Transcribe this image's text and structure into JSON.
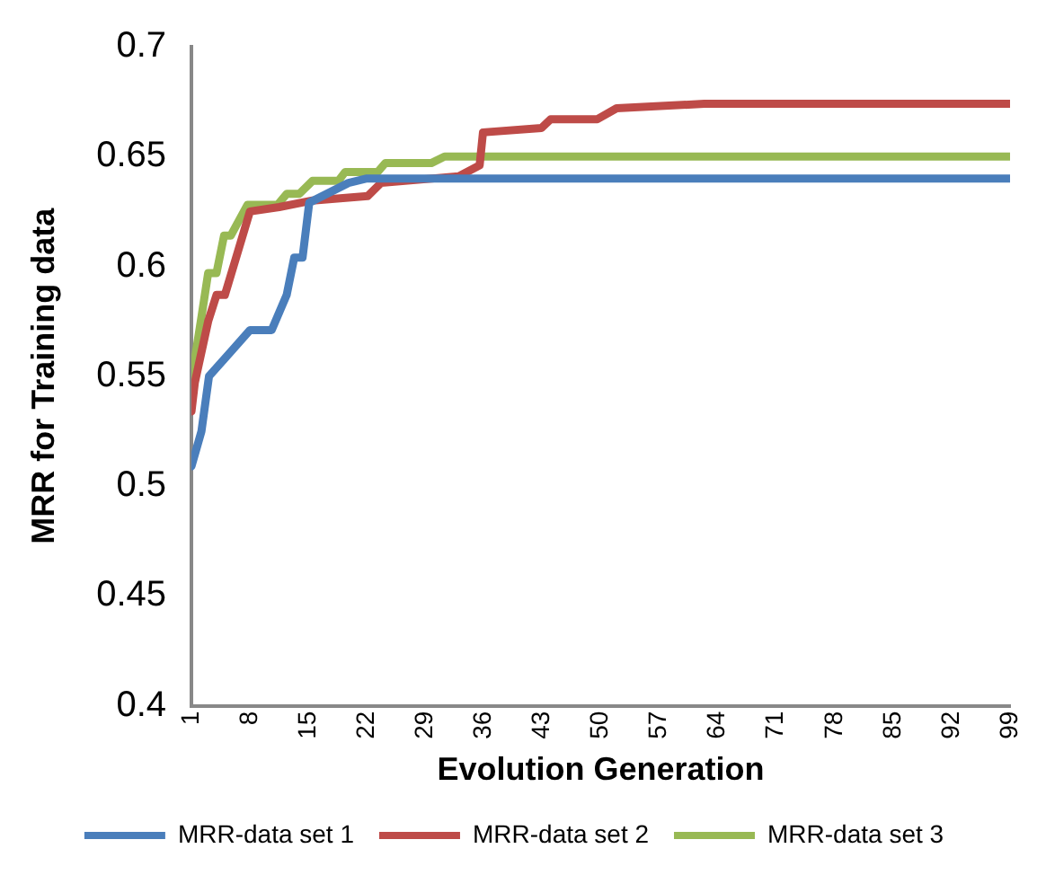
{
  "chart_data": {
    "type": "line",
    "xlabel": "Evolution Generation",
    "ylabel": "MRR for Training data",
    "xlim": [
      1,
      99
    ],
    "xticks": [
      1,
      8,
      15,
      22,
      29,
      36,
      43,
      50,
      57,
      64,
      71,
      78,
      85,
      92,
      99
    ],
    "ylim": [
      0.4,
      0.7
    ],
    "yticks": [
      0.4,
      0.45,
      0.5,
      0.55,
      0.6,
      0.65,
      0.7
    ],
    "grid": false,
    "legend": "bottom",
    "marker": "none",
    "line_style": "solid",
    "series": [
      {
        "name": "MRR-data set 1",
        "color": "#4a7ebb",
        "x": [
          1,
          2.2,
          3.1,
          8,
          10.6,
          12.4,
          13.3,
          14.3,
          15.1,
          19.8,
          22,
          99
        ],
        "values": [
          0.509,
          0.525,
          0.55,
          0.571,
          0.571,
          0.587,
          0.604,
          0.604,
          0.629,
          0.638,
          0.64,
          0.64
        ]
      },
      {
        "name": "MRR-data set 2",
        "color": "#be4b48",
        "x": [
          1,
          1.4,
          3,
          4,
          5,
          8,
          11.5,
          15.5,
          22.1,
          23.7,
          33,
          35.5,
          35.9,
          42.9,
          44,
          49.6,
          51.9,
          62.4,
          99
        ],
        "values": [
          0.534,
          0.547,
          0.575,
          0.587,
          0.587,
          0.625,
          0.627,
          0.63,
          0.632,
          0.638,
          0.641,
          0.646,
          0.661,
          0.663,
          0.667,
          0.667,
          0.672,
          0.674,
          0.674
        ]
      },
      {
        "name": "MRR-data set 3",
        "color": "#98b954",
        "x": [
          1,
          2.2,
          3,
          4,
          4.9,
          5.7,
          7.7,
          11.3,
          12.4,
          13.9,
          15.5,
          18.6,
          19.4,
          23.3,
          24.2,
          29.7,
          31.3,
          99
        ],
        "values": [
          0.548,
          0.577,
          0.597,
          0.597,
          0.614,
          0.614,
          0.628,
          0.628,
          0.633,
          0.633,
          0.639,
          0.639,
          0.643,
          0.643,
          0.647,
          0.647,
          0.65,
          0.65
        ]
      }
    ]
  }
}
